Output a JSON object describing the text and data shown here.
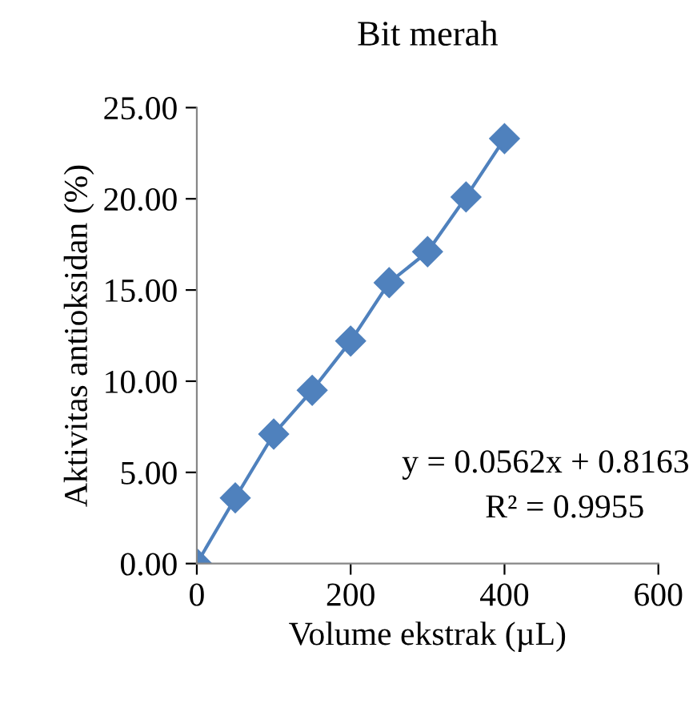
{
  "chart_data": {
    "type": "line",
    "title": "Bit merah",
    "xlabel": "Volume ekstrak (µL)",
    "ylabel": "Aktivitas antioksidan (%)",
    "x": [
      0,
      50,
      100,
      150,
      200,
      250,
      300,
      350,
      400
    ],
    "series": [
      {
        "color": "#4f81bd",
        "values": [
          0,
          3.6,
          7.1,
          9.5,
          12.2,
          15.4,
          17.1,
          20.1,
          23.3
        ]
      }
    ],
    "xlim": [
      0,
      600
    ],
    "xticks": [
      0,
      200,
      400,
      600
    ],
    "ylim": [
      0,
      25
    ],
    "yticks": [
      {
        "value": 0,
        "label": "0.00"
      },
      {
        "value": 5,
        "label": "5.00"
      },
      {
        "value": 10,
        "label": "10.00"
      },
      {
        "value": 15,
        "label": "15.00"
      },
      {
        "value": 20,
        "label": "20.00"
      },
      {
        "value": 25,
        "label": "25.00"
      }
    ],
    "marker": "diamond",
    "line_style": "solid",
    "grid": false,
    "legend": false,
    "annotations": [
      "y = 0.0562x + 0.8163",
      "R² = 0.9955"
    ]
  }
}
